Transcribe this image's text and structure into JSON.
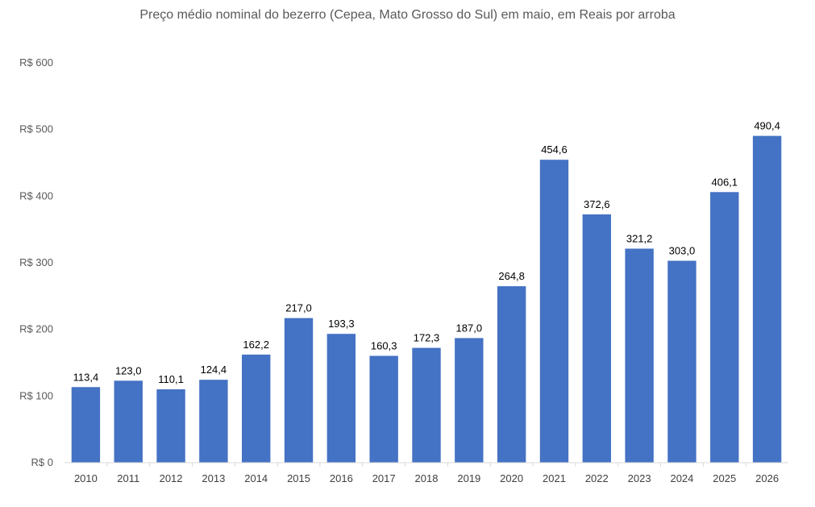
{
  "chart_data": {
    "type": "bar",
    "title": "Preço médio nominal do bezerro (Cepea, Mato Grosso do Sul) em maio, em Reais por arroba",
    "categories": [
      "2010",
      "2011",
      "2012",
      "2013",
      "2014",
      "2015",
      "2016",
      "2017",
      "2018",
      "2019",
      "2020",
      "2021",
      "2022",
      "2023",
      "2024",
      "2025",
      "2026"
    ],
    "values": [
      113.4,
      123.0,
      110.1,
      124.4,
      162.2,
      217.0,
      193.3,
      160.3,
      172.3,
      187.0,
      264.8,
      454.6,
      372.6,
      321.2,
      303.0,
      406.1,
      490.4
    ],
    "data_labels": [
      "113,4",
      "123,0",
      "110,1",
      "124,4",
      "162,2",
      "217,0",
      "193,3",
      "160,3",
      "172,3",
      "187,0",
      "264,8",
      "454,6",
      "372,6",
      "321,2",
      "303,0",
      "406,1",
      "490,4"
    ],
    "ylim": [
      0,
      600
    ],
    "yticks": [
      0,
      100,
      200,
      300,
      400,
      500,
      600
    ],
    "ytick_labels": [
      "R$ 0",
      "R$ 100",
      "R$ 200",
      "R$ 300",
      "R$ 400",
      "R$ 500",
      "R$ 600"
    ],
    "grid": false,
    "bar_color": "#4472C4"
  }
}
